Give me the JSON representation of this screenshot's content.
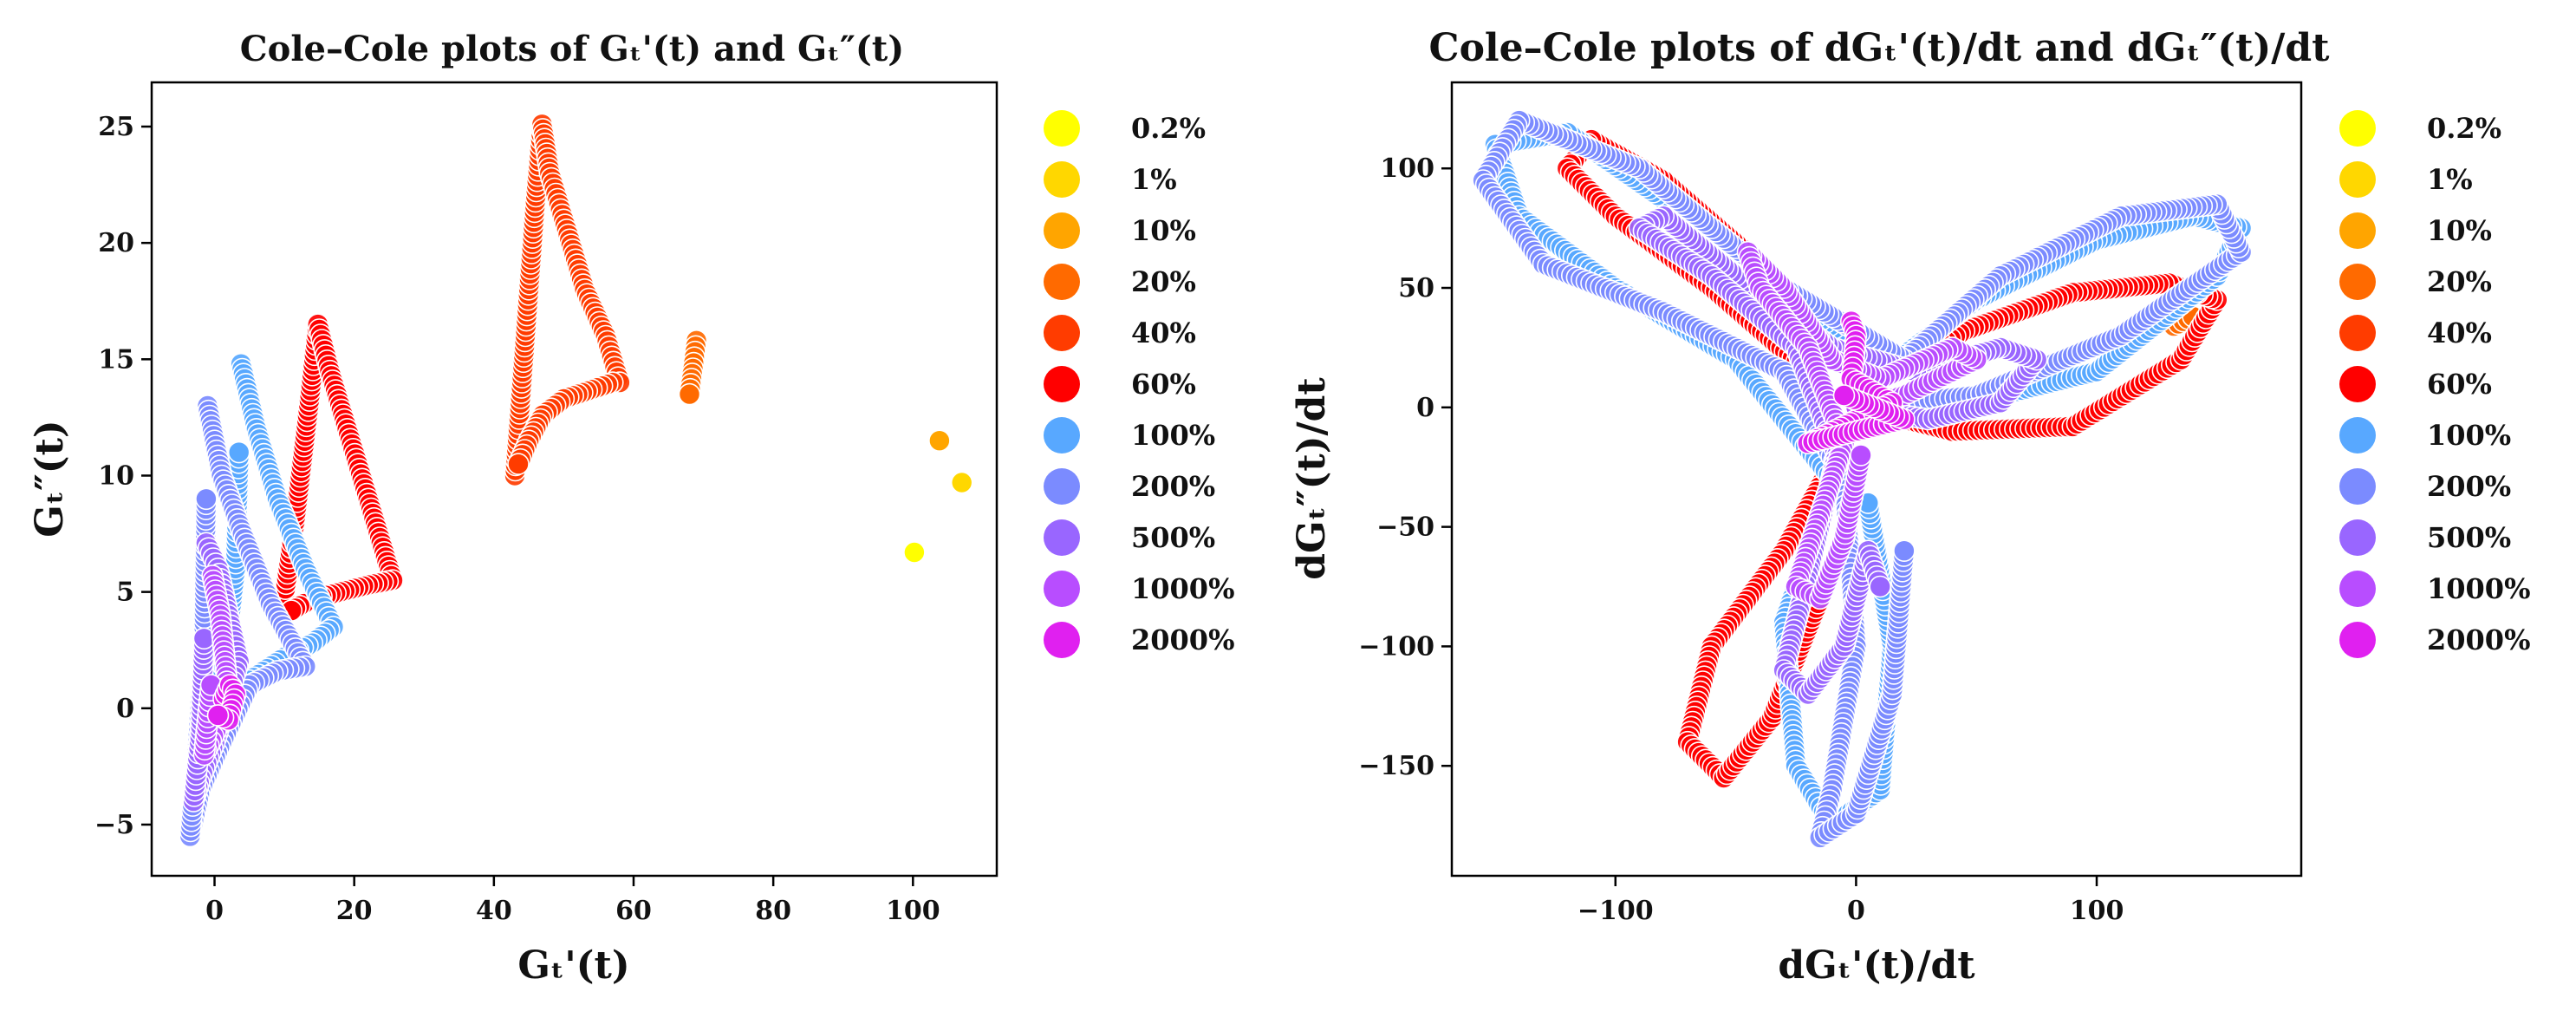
{
  "chart_data": [
    {
      "type": "scatter",
      "title": "Cole–Cole plots of Gₜ'(t) and Gₜ″(t)",
      "xlabel": "Gₜ'(t)",
      "ylabel": "Gₜ″(t)",
      "xlim": [
        -9,
        112
      ],
      "ylim": [
        -7.2,
        26.9
      ],
      "xticks": [
        0,
        20,
        40,
        60,
        80,
        100
      ],
      "yticks": [
        -5,
        0,
        5,
        10,
        15,
        20,
        25
      ],
      "grid": false,
      "legend_position": "outside-right",
      "series": [
        {
          "name": "0.2%",
          "color": "#ffff00",
          "points": [
            [
              100.2,
              6.7
            ]
          ]
        },
        {
          "name": "1%",
          "color": "#ffd700",
          "points": [
            [
              107.0,
              9.7
            ]
          ]
        },
        {
          "name": "10%",
          "color": "#ffa500",
          "points": [
            [
              103.8,
              11.5
            ]
          ]
        },
        {
          "name": "20%",
          "color": "#ff6a00",
          "points": [
            [
              69.0,
              15.8
            ],
            [
              68.5,
              14.6
            ],
            [
              68.0,
              13.5
            ]
          ]
        },
        {
          "name": "40%",
          "color": "#ff3c00",
          "points": [
            [
              43.0,
              10.0
            ],
            [
              44.0,
              14.0
            ],
            [
              45.0,
              18.0
            ],
            [
              46.0,
              22.0
            ],
            [
              46.9,
              25.1
            ],
            [
              48.0,
              23.0
            ],
            [
              50.0,
              21.0
            ],
            [
              53.0,
              18.0
            ],
            [
              56.0,
              16.0
            ],
            [
              58.0,
              14.0
            ],
            [
              57.0,
              14.0
            ],
            [
              54.0,
              13.7
            ],
            [
              50.0,
              13.3
            ],
            [
              47.0,
              12.6
            ],
            [
              45.0,
              11.5
            ],
            [
              43.5,
              10.5
            ]
          ]
        },
        {
          "name": "60%",
          "color": "#ff0000",
          "points": [
            [
              9.5,
              3.8
            ],
            [
              11.5,
              8.0
            ],
            [
              13.5,
              13.0
            ],
            [
              14.8,
              16.5
            ],
            [
              16.5,
              14.5
            ],
            [
              19.0,
              12.0
            ],
            [
              22.0,
              9.0
            ],
            [
              24.5,
              6.5
            ],
            [
              25.5,
              5.5
            ],
            [
              22.0,
              5.3
            ],
            [
              18.0,
              5.0
            ],
            [
              14.0,
              4.7
            ],
            [
              11.0,
              4.2
            ]
          ]
        },
        {
          "name": "100%",
          "color": "#58a8ff",
          "points": [
            [
              3.8,
              14.8
            ],
            [
              6.0,
              12.0
            ],
            [
              9.0,
              9.0
            ],
            [
              13.0,
              6.0
            ],
            [
              17.0,
              3.5
            ],
            [
              14.0,
              2.8
            ],
            [
              10.0,
              2.2
            ],
            [
              5.0,
              1.2
            ],
            [
              1.5,
              -0.5
            ],
            [
              -1.0,
              -1.5
            ],
            [
              1.5,
              2.0
            ],
            [
              3.0,
              6.0
            ],
            [
              3.5,
              11.0
            ]
          ]
        },
        {
          "name": "200%",
          "color": "#7b8bff",
          "points": [
            [
              -1.0,
              13.0
            ],
            [
              1.0,
              10.0
            ],
            [
              4.0,
              7.5
            ],
            [
              8.0,
              4.5
            ],
            [
              13.0,
              1.8
            ],
            [
              9.0,
              1.6
            ],
            [
              5.0,
              1.0
            ],
            [
              1.0,
              -1.5
            ],
            [
              -2.0,
              -3.5
            ],
            [
              -3.5,
              -5.5
            ],
            [
              -2.5,
              -2.0
            ],
            [
              -1.5,
              3.0
            ],
            [
              -1.2,
              9.0
            ]
          ]
        },
        {
          "name": "500%",
          "color": "#9966ff",
          "points": [
            [
              -1.2,
              7.1
            ],
            [
              0.5,
              6.0
            ],
            [
              2.0,
              4.0
            ],
            [
              3.5,
              2.0
            ],
            [
              2.0,
              0.5
            ],
            [
              0.0,
              -1.5
            ],
            [
              -2.0,
              -3.0
            ],
            [
              -3.0,
              -4.0
            ],
            [
              -2.0,
              -1.0
            ],
            [
              -1.5,
              3.0
            ]
          ]
        },
        {
          "name": "1000%",
          "color": "#b84dff",
          "points": [
            [
              -0.3,
              5.7
            ],
            [
              0.8,
              4.0
            ],
            [
              1.5,
              2.0
            ],
            [
              2.0,
              0.5
            ],
            [
              0.5,
              -0.8
            ],
            [
              -1.5,
              -2.0
            ],
            [
              -0.5,
              1.0
            ]
          ]
        },
        {
          "name": "2000%",
          "color": "#e020f0",
          "points": [
            [
              1.3,
              0.4
            ],
            [
              2.2,
              1.0
            ],
            [
              3.0,
              0.6
            ],
            [
              2.0,
              -0.5
            ],
            [
              0.5,
              -0.3
            ]
          ]
        }
      ]
    },
    {
      "type": "scatter",
      "title": "Cole–Cole plots of dGₜ'(t)/dt and dGₜ″(t)/dt",
      "xlabel": "dGₜ'(t)/dt",
      "ylabel": "dGₜ″(t)/dt",
      "xlim": [
        -168,
        185
      ],
      "ylim": [
        -196,
        136
      ],
      "xticks": [
        -100,
        0,
        100
      ],
      "yticks": [
        -150,
        -100,
        -50,
        0,
        50,
        100
      ],
      "grid": false,
      "legend_position": "outside-right",
      "series": [
        {
          "name": "0.2%",
          "color": "#ffff00",
          "points": []
        },
        {
          "name": "1%",
          "color": "#ffd700",
          "points": []
        },
        {
          "name": "10%",
          "color": "#ffa500",
          "points": []
        },
        {
          "name": "20%",
          "color": "#ff6a00",
          "points": [
            [
              132,
              34
            ],
            [
              140,
              38
            ]
          ]
        },
        {
          "name": "40%",
          "color": "#ff3c00",
          "points": [
            [
              148,
              42
            ]
          ]
        },
        {
          "name": "60%",
          "color": "#ff0000",
          "points": [
            [
              0,
              0
            ],
            [
              40,
              -10
            ],
            [
              90,
              -8
            ],
            [
              135,
              20
            ],
            [
              150,
              45
            ],
            [
              130,
              52
            ],
            [
              90,
              48
            ],
            [
              45,
              32
            ],
            [
              15,
              15
            ],
            [
              -10,
              30
            ],
            [
              -40,
              60
            ],
            [
              -80,
              95
            ],
            [
              -110,
              112
            ],
            [
              -120,
              100
            ],
            [
              -100,
              80
            ],
            [
              -60,
              50
            ],
            [
              -20,
              15
            ],
            [
              -8,
              -20
            ],
            [
              -30,
              -60
            ],
            [
              -60,
              -100
            ],
            [
              -70,
              -140
            ],
            [
              -55,
              -155
            ],
            [
              -35,
              -130
            ],
            [
              -15,
              -80
            ]
          ]
        },
        {
          "name": "100%",
          "color": "#58a8ff",
          "points": [
            [
              0,
              0
            ],
            [
              40,
              0
            ],
            [
              100,
              15
            ],
            [
              150,
              55
            ],
            [
              160,
              75
            ],
            [
              140,
              80
            ],
            [
              100,
              70
            ],
            [
              50,
              45
            ],
            [
              15,
              18
            ],
            [
              -20,
              40
            ],
            [
              -70,
              80
            ],
            [
              -120,
              115
            ],
            [
              -150,
              110
            ],
            [
              -140,
              80
            ],
            [
              -100,
              50
            ],
            [
              -50,
              20
            ],
            [
              -10,
              -30
            ],
            [
              -30,
              -90
            ],
            [
              -25,
              -150
            ],
            [
              -10,
              -175
            ],
            [
              10,
              -160
            ],
            [
              15,
              -100
            ],
            [
              5,
              -40
            ]
          ]
        },
        {
          "name": "200%",
          "color": "#7b8bff",
          "points": [
            [
              0,
              0
            ],
            [
              50,
              5
            ],
            [
              110,
              30
            ],
            [
              160,
              65
            ],
            [
              150,
              85
            ],
            [
              110,
              80
            ],
            [
              60,
              55
            ],
            [
              20,
              20
            ],
            [
              -30,
              50
            ],
            [
              -90,
              100
            ],
            [
              -140,
              120
            ],
            [
              -155,
              95
            ],
            [
              -130,
              60
            ],
            [
              -80,
              40
            ],
            [
              -30,
              15
            ],
            [
              -5,
              -30
            ],
            [
              0,
              -100
            ],
            [
              -10,
              -160
            ],
            [
              -15,
              -180
            ],
            [
              0,
              -170
            ],
            [
              15,
              -120
            ],
            [
              20,
              -60
            ]
          ]
        },
        {
          "name": "500%",
          "color": "#9966ff",
          "points": [
            [
              0,
              0
            ],
            [
              30,
              -5
            ],
            [
              60,
              2
            ],
            [
              75,
              20
            ],
            [
              60,
              25
            ],
            [
              25,
              15
            ],
            [
              -10,
              25
            ],
            [
              -50,
              55
            ],
            [
              -80,
              80
            ],
            [
              -90,
              75
            ],
            [
              -60,
              55
            ],
            [
              -25,
              25
            ],
            [
              -8,
              -20
            ],
            [
              -20,
              -70
            ],
            [
              -30,
              -110
            ],
            [
              -20,
              -120
            ],
            [
              -5,
              -100
            ],
            [
              5,
              -60
            ],
            [
              10,
              -75
            ]
          ]
        },
        {
          "name": "1000%",
          "color": "#b84dff",
          "points": [
            [
              0,
              0
            ],
            [
              20,
              5
            ],
            [
              40,
              15
            ],
            [
              50,
              20
            ],
            [
              40,
              25
            ],
            [
              10,
              12
            ],
            [
              -10,
              20
            ],
            [
              -30,
              50
            ],
            [
              -45,
              65
            ],
            [
              -40,
              50
            ],
            [
              -20,
              25
            ],
            [
              -5,
              -15
            ],
            [
              -15,
              -45
            ],
            [
              -25,
              -75
            ],
            [
              -15,
              -80
            ],
            [
              -5,
              -55
            ],
            [
              2,
              -20
            ]
          ]
        },
        {
          "name": "2000%",
          "color": "#e020f0",
          "points": [
            [
              -2,
              36
            ],
            [
              0,
              30
            ],
            [
              -1,
              19
            ],
            [
              -2,
              12
            ],
            [
              15,
              2
            ],
            [
              -20,
              -15
            ],
            [
              20,
              -5
            ],
            [
              -5,
              5
            ]
          ]
        }
      ]
    }
  ]
}
